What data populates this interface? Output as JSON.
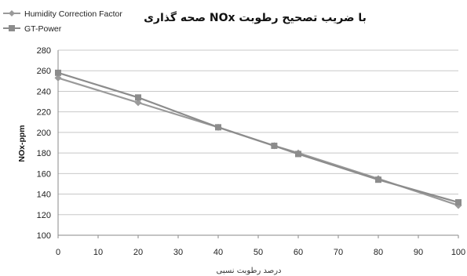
{
  "chart_data": {
    "type": "line",
    "title": "صحه گذاری NOx با ضریب تصحیح رطوبت",
    "xlabel": "درصد رطوبت نسبی",
    "ylabel": "NOx-ppm",
    "xlim": [
      0,
      100
    ],
    "ylim": [
      100,
      280
    ],
    "x_ticks": [
      0,
      10,
      20,
      30,
      40,
      50,
      60,
      70,
      80,
      90,
      100
    ],
    "y_ticks": [
      100,
      120,
      140,
      160,
      180,
      200,
      220,
      240,
      260,
      280
    ],
    "grid": true,
    "legend_position": "top-left",
    "series": [
      {
        "name": "Humidity Correction Factor",
        "marker": "diamond",
        "color": "#9a9a9a",
        "x": [
          0,
          20,
          40,
          54,
          60,
          80,
          100
        ],
        "y": [
          253,
          229,
          205,
          187,
          180,
          155,
          129
        ]
      },
      {
        "name": "GT-Power",
        "marker": "square",
        "color": "#8c8c8c",
        "x": [
          0,
          20,
          40,
          54,
          60,
          80,
          100
        ],
        "y": [
          258,
          234,
          205,
          187,
          179,
          154,
          132
        ]
      }
    ]
  }
}
